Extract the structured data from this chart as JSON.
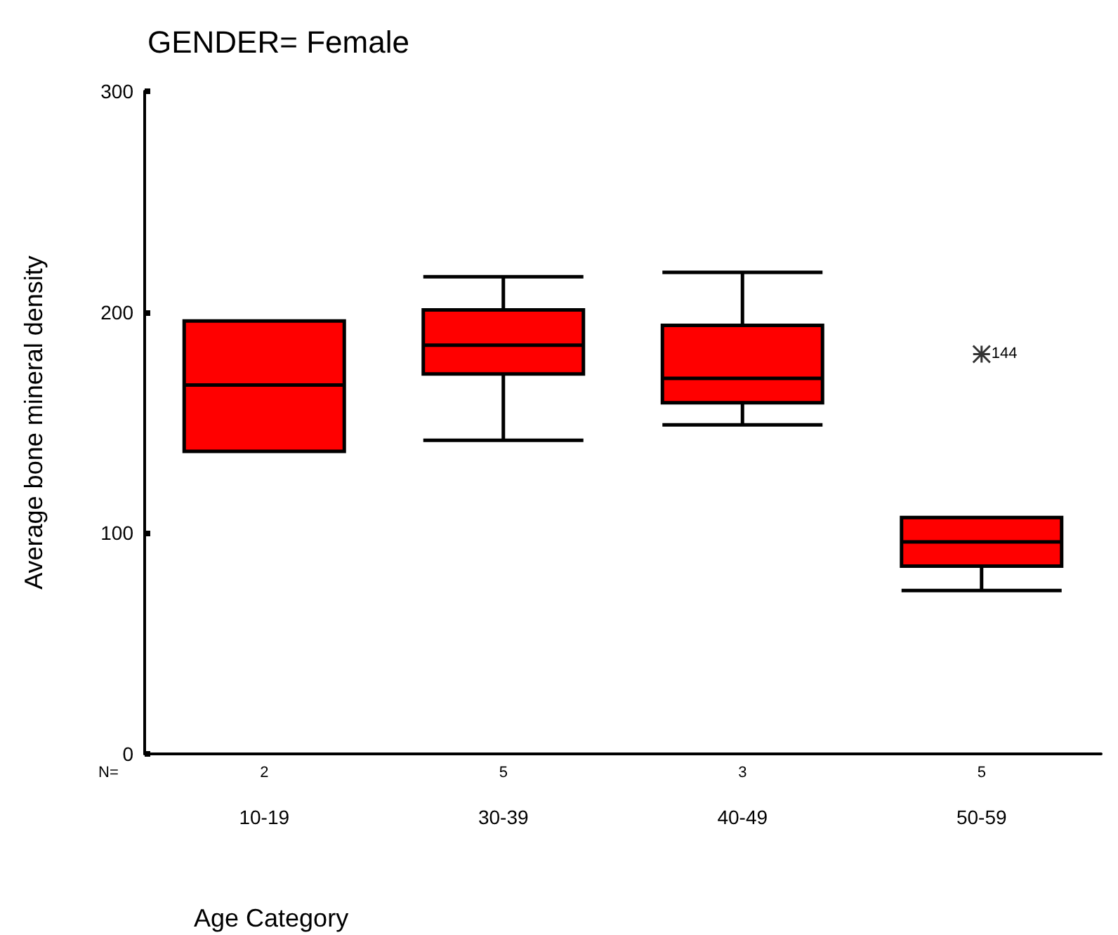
{
  "chart_data": {
    "type": "box",
    "title": "GENDER= Female",
    "xlabel": "Age Category",
    "ylabel": "Average bone mineral density",
    "categories": [
      "10-19",
      "30-39",
      "40-49",
      "50-59"
    ],
    "boxes": [
      {
        "low": 137,
        "q1": 137,
        "median": 167,
        "q3": 196,
        "high": 196
      },
      {
        "low": 142,
        "q1": 172,
        "median": 185,
        "q3": 201,
        "high": 216
      },
      {
        "low": 149,
        "q1": 159,
        "median": 170,
        "q3": 194,
        "high": 218
      },
      {
        "low": 74,
        "q1": 85,
        "median": 96,
        "q3": 107,
        "high": 107,
        "outliers": [
          181
        ]
      }
    ],
    "color": "#ff0000",
    "ylim": [
      0,
      300
    ],
    "yticks": [
      0,
      100,
      200,
      300
    ],
    "grid": false,
    "annotations": [
      "N=",
      "2",
      "5",
      "3",
      "5",
      "144"
    ]
  }
}
